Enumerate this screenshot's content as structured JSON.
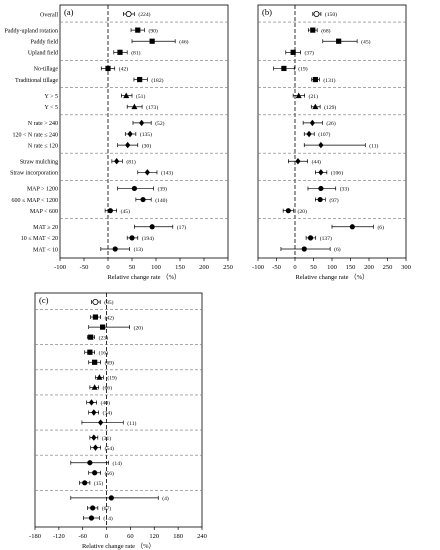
{
  "figure": {
    "panel_tags": [
      "(a)",
      "(b)",
      "(c)"
    ],
    "x_axis_label": "Relative change rate （%）"
  },
  "chart_data": [
    {
      "type": "forest",
      "panel": "(a)",
      "xlim": [
        -100,
        250
      ],
      "xticks": [
        -100,
        -50,
        0,
        50,
        100,
        150,
        200,
        250
      ],
      "xlabel": "Relative change rate （%）",
      "rows": [
        {
          "label": "Overall",
          "marker": "open-circle",
          "mean": 43,
          "low": 32,
          "high": 55,
          "n": "224"
        },
        {
          "label": "Paddy-upland rotation",
          "marker": "square",
          "mean": 62,
          "low": 48,
          "high": 76,
          "n": "90"
        },
        {
          "label": "Paddy field",
          "marker": "square",
          "mean": 92,
          "low": 50,
          "high": 140,
          "n": "46"
        },
        {
          "label": "Upland field",
          "marker": "square",
          "mean": 25,
          "low": 12,
          "high": 40,
          "n": "81"
        },
        {
          "label": "No-tillage",
          "marker": "square",
          "mean": 0,
          "low": -14,
          "high": 14,
          "n": "42"
        },
        {
          "label": "Traditional tillage",
          "marker": "square",
          "mean": 66,
          "low": 54,
          "high": 82,
          "n": "182"
        },
        {
          "label": "Y > 5",
          "marker": "triangle",
          "mean": 38,
          "low": 28,
          "high": 50,
          "n": "51"
        },
        {
          "label": "Y < 5",
          "marker": "triangle",
          "mean": 55,
          "low": 40,
          "high": 71,
          "n": "173"
        },
        {
          "label": "N rate > 240",
          "marker": "diamond",
          "mean": 70,
          "low": 52,
          "high": 90,
          "n": "52"
        },
        {
          "label": "120 < N rate ≤ 240",
          "marker": "diamond",
          "mean": 46,
          "low": 36,
          "high": 58,
          "n": "135"
        },
        {
          "label": "N rate ≤ 120",
          "marker": "diamond",
          "mean": 41,
          "low": 20,
          "high": 62,
          "n": "30"
        },
        {
          "label": "Straw mulching",
          "marker": "diamond",
          "mean": 18,
          "low": 8,
          "high": 30,
          "n": "81"
        },
        {
          "label": "Straw incorporation",
          "marker": "diamond",
          "mean": 82,
          "low": 62,
          "high": 102,
          "n": "143"
        },
        {
          "label": "MAP > 1200",
          "marker": "circle",
          "mean": 55,
          "low": 20,
          "high": 95,
          "n": "39"
        },
        {
          "label": "600 ≤ MAP < 1200",
          "marker": "circle",
          "mean": 73,
          "low": 58,
          "high": 90,
          "n": "140"
        },
        {
          "label": "MAP < 600",
          "marker": "circle",
          "mean": 5,
          "low": -6,
          "high": 18,
          "n": "45"
        },
        {
          "label": "MAT ≥ 20",
          "marker": "circle",
          "mean": 92,
          "low": 55,
          "high": 135,
          "n": "17"
        },
        {
          "label": "10 ≤ MAT < 20",
          "marker": "circle",
          "mean": 50,
          "low": 40,
          "high": 62,
          "n": "194"
        },
        {
          "label": "MAT < 10",
          "marker": "circle",
          "mean": 15,
          "low": -15,
          "high": 45,
          "n": "13"
        }
      ]
    },
    {
      "type": "forest",
      "panel": "(b)",
      "xlim": [
        -100,
        300
      ],
      "xticks": [
        -100,
        -50,
        0,
        50,
        100,
        150,
        200,
        250,
        300
      ],
      "xlabel": "Relative change rate （%）",
      "rows": [
        {
          "marker": "open-circle",
          "mean": 58,
          "low": 48,
          "high": 70,
          "n": "150"
        },
        {
          "marker": "square",
          "mean": 48,
          "low": 36,
          "high": 60,
          "n": "68"
        },
        {
          "marker": "square",
          "mean": 118,
          "low": 75,
          "high": 168,
          "n": "45"
        },
        {
          "marker": "square",
          "mean": -5,
          "low": -25,
          "high": 15,
          "n": "37"
        },
        {
          "marker": "square",
          "mean": -30,
          "low": -58,
          "high": -2,
          "n": "19"
        },
        {
          "marker": "square",
          "mean": 55,
          "low": 45,
          "high": 66,
          "n": "131"
        },
        {
          "marker": "triangle",
          "mean": 10,
          "low": -5,
          "high": 26,
          "n": "21"
        },
        {
          "marker": "triangle",
          "mean": 55,
          "low": 44,
          "high": 68,
          "n": "129"
        },
        {
          "marker": "diamond",
          "mean": 47,
          "low": 22,
          "high": 74,
          "n": "26"
        },
        {
          "marker": "diamond",
          "mean": 38,
          "low": 25,
          "high": 52,
          "n": "107"
        },
        {
          "marker": "diamond",
          "mean": 70,
          "low": 25,
          "high": 190,
          "n": "11"
        },
        {
          "marker": "diamond",
          "mean": 8,
          "low": -18,
          "high": 34,
          "n": "44"
        },
        {
          "marker": "diamond",
          "mean": 70,
          "low": 55,
          "high": 86,
          "n": "106"
        },
        {
          "marker": "circle",
          "mean": 70,
          "low": 35,
          "high": 110,
          "n": "33"
        },
        {
          "marker": "circle",
          "mean": 68,
          "low": 55,
          "high": 82,
          "n": "97"
        },
        {
          "marker": "circle",
          "mean": -18,
          "low": -32,
          "high": -4,
          "n": "20"
        },
        {
          "marker": "circle",
          "mean": 155,
          "low": 100,
          "high": 212,
          "n": "6"
        },
        {
          "marker": "circle",
          "mean": 42,
          "low": 30,
          "high": 56,
          "n": "137"
        },
        {
          "marker": "circle",
          "mean": 25,
          "low": -38,
          "high": 95,
          "n": "6"
        }
      ]
    },
    {
      "type": "forest",
      "panel": "(c)",
      "xlim": [
        -180,
        240
      ],
      "xticks": [
        -180,
        -120,
        -60,
        0,
        60,
        120,
        180,
        240
      ],
      "xlabel": "Relative change rate （%）",
      "rows": [
        {
          "marker": "open-circle",
          "mean": -28,
          "low": -38,
          "high": -16,
          "n": "85"
        },
        {
          "marker": "square",
          "mean": -28,
          "low": -40,
          "high": -15,
          "n": "42"
        },
        {
          "marker": "square",
          "mean": -10,
          "low": -45,
          "high": 58,
          "n": "20"
        },
        {
          "marker": "square",
          "mean": -40,
          "low": -48,
          "high": -30,
          "n": "23"
        },
        {
          "marker": "square",
          "mean": -42,
          "low": -55,
          "high": -30,
          "n": "16"
        },
        {
          "marker": "square",
          "mean": -30,
          "low": -45,
          "high": -15,
          "n": "69"
        },
        {
          "marker": "triangle",
          "mean": -18,
          "low": -28,
          "high": -8,
          "n": "19"
        },
        {
          "marker": "triangle",
          "mean": -30,
          "low": -42,
          "high": -20,
          "n": "66"
        },
        {
          "marker": "diamond",
          "mean": -38,
          "low": -50,
          "high": -25,
          "n": "40"
        },
        {
          "marker": "diamond",
          "mean": -32,
          "low": -45,
          "high": -20,
          "n": "34"
        },
        {
          "marker": "diamond",
          "mean": -15,
          "low": -62,
          "high": 42,
          "n": "11"
        },
        {
          "marker": "diamond",
          "mean": -32,
          "low": -42,
          "high": -22,
          "n": "31"
        },
        {
          "marker": "diamond",
          "mean": -28,
          "low": -40,
          "high": -15,
          "n": "54"
        },
        {
          "marker": "circle",
          "mean": -42,
          "low": -90,
          "high": 5,
          "n": "14"
        },
        {
          "marker": "circle",
          "mean": -30,
          "low": -45,
          "high": -15,
          "n": "56"
        },
        {
          "marker": "circle",
          "mean": -55,
          "low": -68,
          "high": -42,
          "n": "15"
        },
        {
          "marker": "circle",
          "mean": 12,
          "low": -90,
          "high": 130,
          "n": "4"
        },
        {
          "marker": "circle",
          "mean": -35,
          "low": -48,
          "high": -22,
          "n": "67"
        },
        {
          "marker": "circle",
          "mean": -38,
          "low": -58,
          "high": -18,
          "n": "14"
        }
      ]
    }
  ]
}
